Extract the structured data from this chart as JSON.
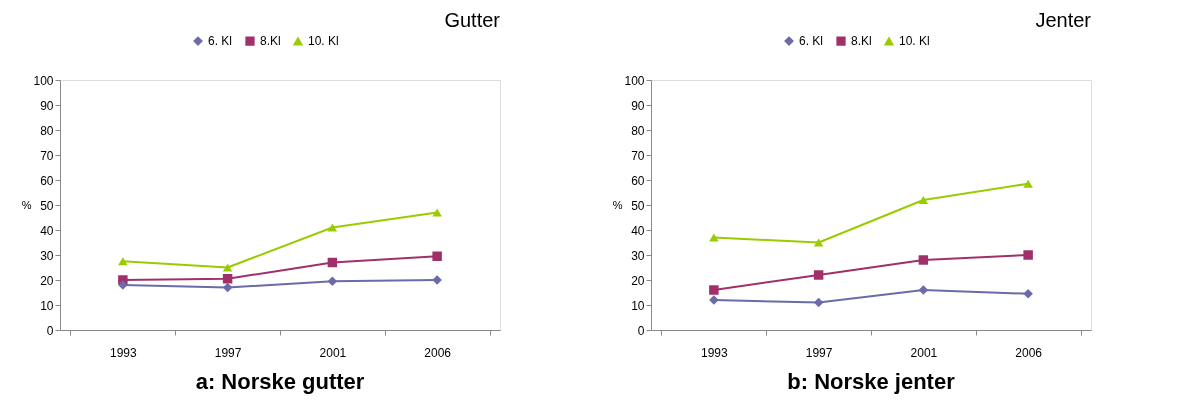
{
  "chart_data": [
    {
      "type": "line",
      "title": "Gutter",
      "ylabel": "%",
      "categories": [
        "1993",
        "1997",
        "2001",
        "2006"
      ],
      "ylim": [
        0,
        100
      ],
      "yticks": [
        0,
        10,
        20,
        30,
        40,
        50,
        60,
        70,
        80,
        90,
        100
      ],
      "legend": "top",
      "grid": false,
      "annotations": [
        "a: Norske gutter"
      ],
      "series": [
        {
          "name": "6. Kl",
          "color": "#6b6ba8",
          "marker": "diamond",
          "values": [
            18,
            17,
            19.5,
            20
          ]
        },
        {
          "name": "8.Kl",
          "color": "#a0306a",
          "marker": "square",
          "values": [
            20,
            20.5,
            27,
            29.5
          ]
        },
        {
          "name": "10. Kl",
          "color": "#99cc00",
          "marker": "triangle",
          "values": [
            27.5,
            25,
            41,
            47
          ]
        }
      ]
    },
    {
      "type": "line",
      "title": "Jenter",
      "ylabel": "%",
      "categories": [
        "1993",
        "1997",
        "2001",
        "2006"
      ],
      "ylim": [
        0,
        100
      ],
      "yticks": [
        0,
        10,
        20,
        30,
        40,
        50,
        60,
        70,
        80,
        90,
        100
      ],
      "legend": "top",
      "grid": false,
      "annotations": [
        "b: Norske jenter"
      ],
      "series": [
        {
          "name": "6. Kl",
          "color": "#6b6ba8",
          "marker": "diamond",
          "values": [
            12,
            11,
            16,
            14.5
          ]
        },
        {
          "name": "8.Kl",
          "color": "#a0306a",
          "marker": "square",
          "values": [
            16,
            22,
            28,
            30
          ]
        },
        {
          "name": "10. Kl",
          "color": "#99cc00",
          "marker": "triangle",
          "values": [
            37,
            35,
            52,
            58.5
          ]
        }
      ]
    }
  ]
}
